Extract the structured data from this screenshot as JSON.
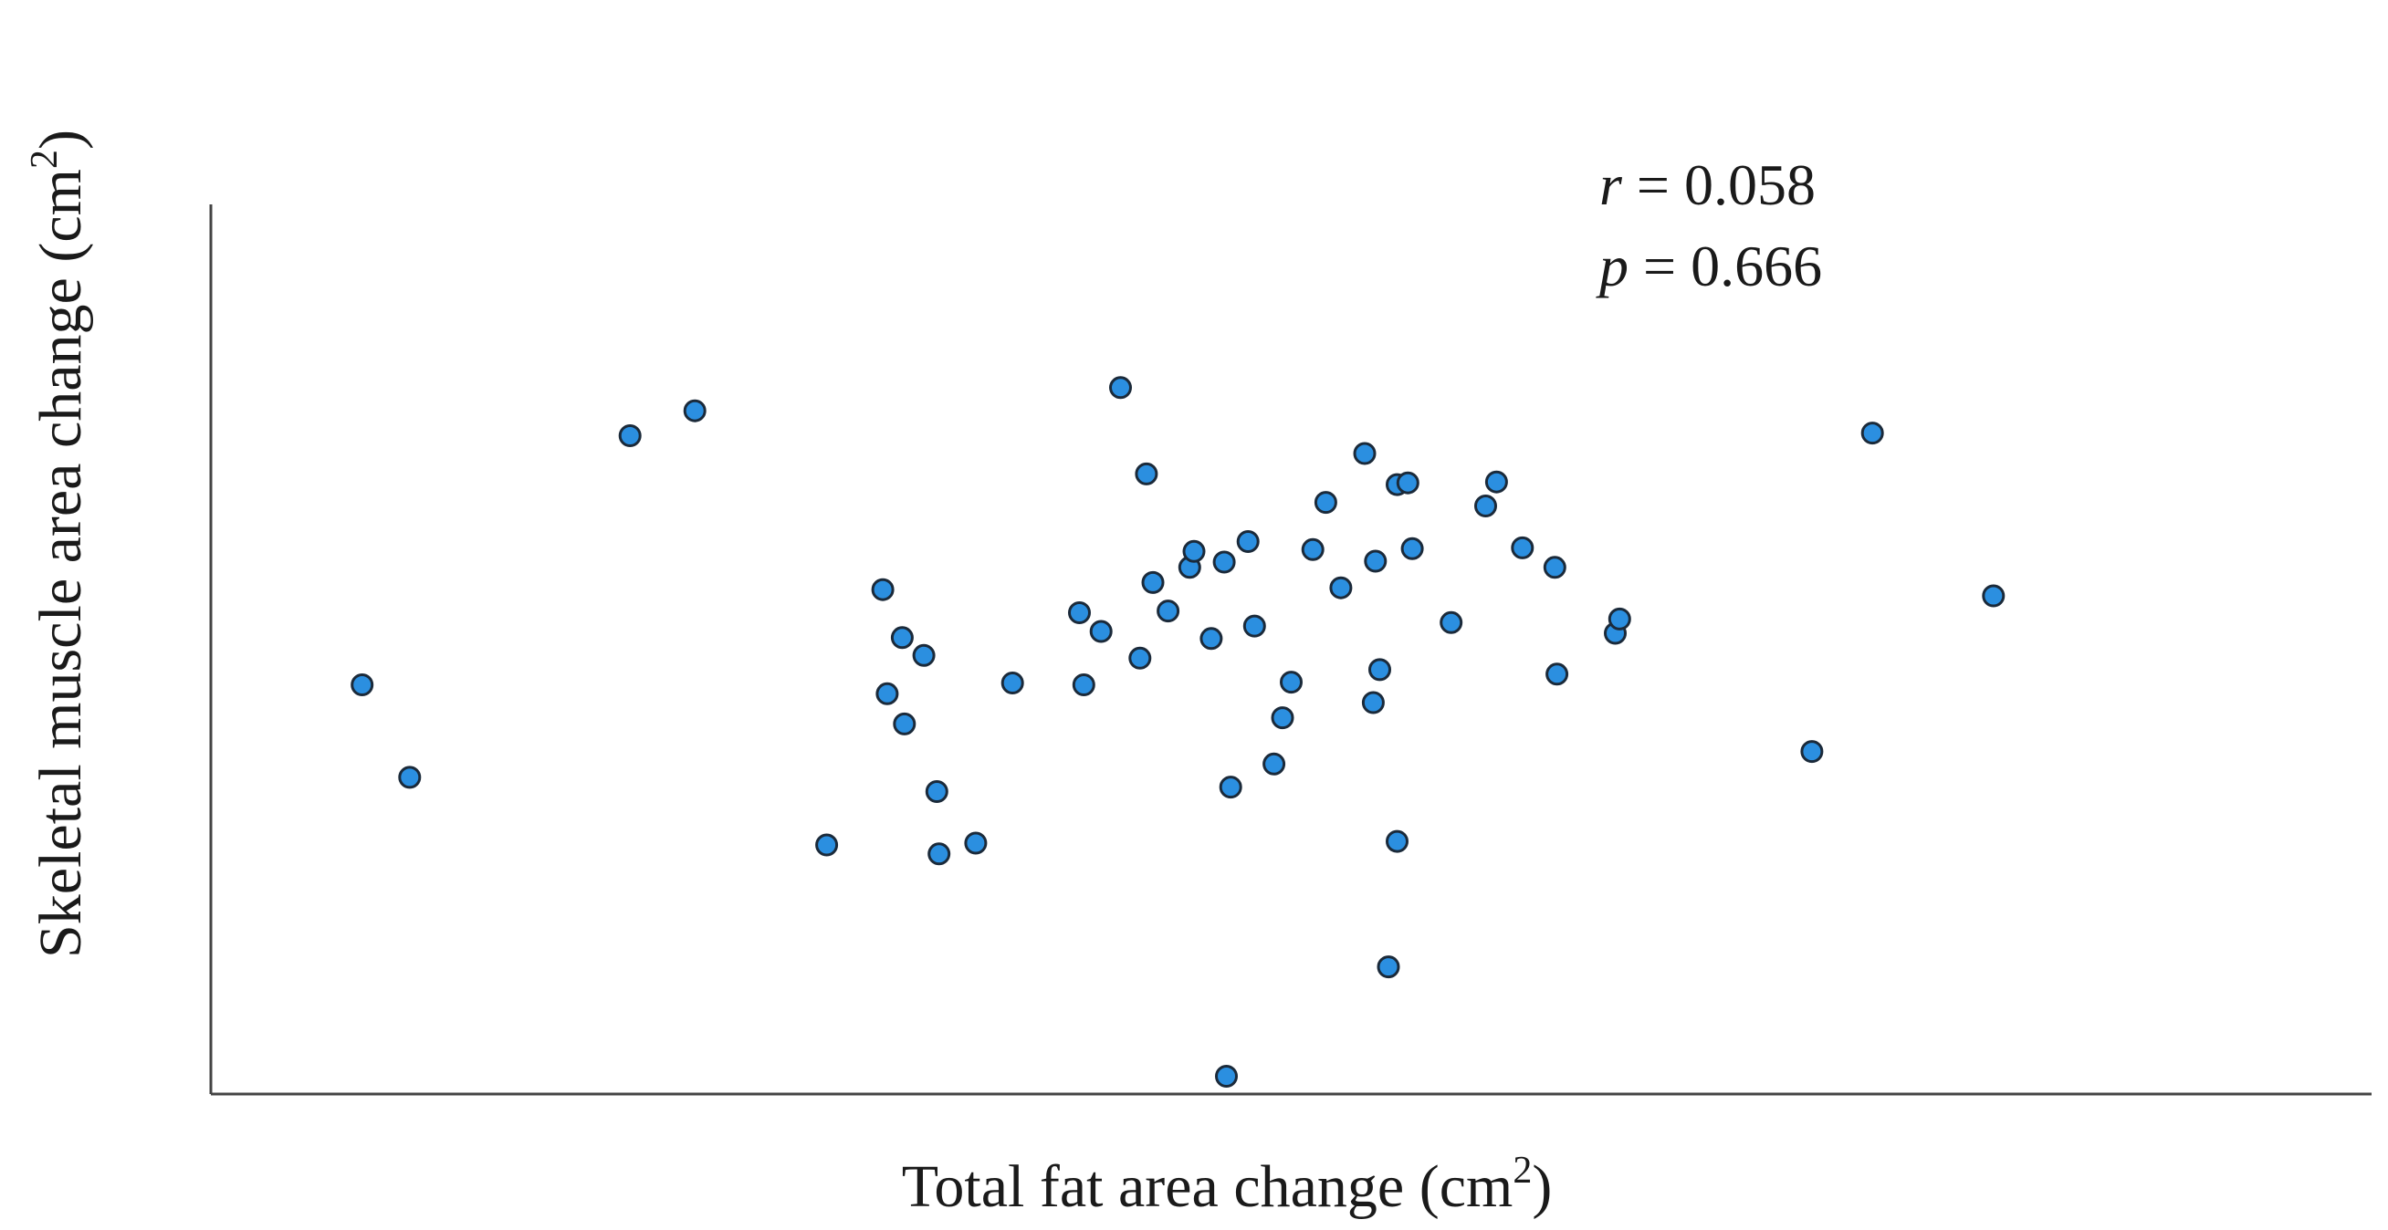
{
  "chart_data": {
    "type": "scatter",
    "title": "",
    "xlabel": "Total fat area change (cm",
    "xlabel_sup": "2",
    "xlabel_close": ")",
    "ylabel": "Skeletal muscle area change (cm",
    "ylabel_sup": "2",
    "ylabel_close": ")",
    "xlim": [
      0,
      100
    ],
    "ylim": [
      0,
      100
    ],
    "grid": false,
    "ticks": false,
    "point_color": "#2b8fe0",
    "annotation": {
      "r_symbol": "r",
      "r_text": " = 0.058",
      "p_symbol": "p",
      "p_text": " = 0.666"
    },
    "points": [
      {
        "x": 7.0,
        "y": 46.0
      },
      {
        "x": 9.2,
        "y": 35.6
      },
      {
        "x": 19.4,
        "y": 74.0
      },
      {
        "x": 22.4,
        "y": 76.8
      },
      {
        "x": 28.5,
        "y": 28.0
      },
      {
        "x": 31.1,
        "y": 56.7
      },
      {
        "x": 31.3,
        "y": 45.0
      },
      {
        "x": 32.0,
        "y": 51.3
      },
      {
        "x": 32.1,
        "y": 41.6
      },
      {
        "x": 33.0,
        "y": 49.3
      },
      {
        "x": 33.6,
        "y": 34.0
      },
      {
        "x": 33.7,
        "y": 27.0
      },
      {
        "x": 35.4,
        "y": 28.2
      },
      {
        "x": 37.1,
        "y": 46.2
      },
      {
        "x": 40.2,
        "y": 54.1
      },
      {
        "x": 40.4,
        "y": 46.0
      },
      {
        "x": 41.2,
        "y": 52.0
      },
      {
        "x": 42.1,
        "y": 79.4
      },
      {
        "x": 43.0,
        "y": 49.0
      },
      {
        "x": 43.3,
        "y": 69.7
      },
      {
        "x": 43.6,
        "y": 57.5
      },
      {
        "x": 44.3,
        "y": 54.3
      },
      {
        "x": 45.3,
        "y": 59.2
      },
      {
        "x": 45.5,
        "y": 61.0
      },
      {
        "x": 46.3,
        "y": 51.2
      },
      {
        "x": 46.9,
        "y": 59.8
      },
      {
        "x": 47.2,
        "y": 34.5
      },
      {
        "x": 47.0,
        "y": 2.0
      },
      {
        "x": 48.0,
        "y": 62.1
      },
      {
        "x": 48.3,
        "y": 52.6
      },
      {
        "x": 49.2,
        "y": 37.1
      },
      {
        "x": 49.6,
        "y": 42.3
      },
      {
        "x": 50.0,
        "y": 46.3
      },
      {
        "x": 51.0,
        "y": 61.2
      },
      {
        "x": 51.6,
        "y": 66.5
      },
      {
        "x": 52.3,
        "y": 56.9
      },
      {
        "x": 53.4,
        "y": 72.0
      },
      {
        "x": 53.8,
        "y": 44.0
      },
      {
        "x": 53.9,
        "y": 59.9
      },
      {
        "x": 54.1,
        "y": 47.7
      },
      {
        "x": 54.5,
        "y": 14.3
      },
      {
        "x": 54.9,
        "y": 68.5
      },
      {
        "x": 54.9,
        "y": 28.4
      },
      {
        "x": 55.4,
        "y": 68.7
      },
      {
        "x": 55.6,
        "y": 61.3
      },
      {
        "x": 57.4,
        "y": 53.0
      },
      {
        "x": 59.0,
        "y": 66.1
      },
      {
        "x": 59.5,
        "y": 68.8
      },
      {
        "x": 60.7,
        "y": 61.4
      },
      {
        "x": 62.2,
        "y": 59.2
      },
      {
        "x": 62.3,
        "y": 47.2
      },
      {
        "x": 65.0,
        "y": 51.8
      },
      {
        "x": 65.2,
        "y": 53.4
      },
      {
        "x": 74.1,
        "y": 38.5
      },
      {
        "x": 76.9,
        "y": 74.3
      },
      {
        "x": 82.5,
        "y": 56.0
      }
    ]
  }
}
